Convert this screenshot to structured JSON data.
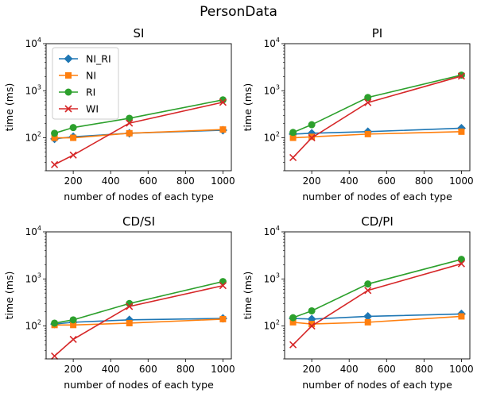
{
  "suptitle": "PersonData",
  "colors": {
    "NI_RI": "#1f77b4",
    "NI": "#ff7f0e",
    "RI": "#2ca02c",
    "WI": "#d62728"
  },
  "markers": {
    "NI_RI": "diamond",
    "NI": "square",
    "RI": "circle",
    "WI": "x"
  },
  "chart_data": [
    {
      "type": "line",
      "title": "SI",
      "xlabel": "number of nodes of each type",
      "ylabel": "time (ms)",
      "y_scale": "log",
      "xlim": [
        55,
        1045
      ],
      "ylim": [
        20,
        10000
      ],
      "x_ticks": [
        200,
        400,
        600,
        800,
        1000
      ],
      "y_ticks": [
        100,
        1000,
        10000
      ],
      "y_tick_labels": [
        {
          "base": "10",
          "exp": "2"
        },
        {
          "base": "10",
          "exp": "3"
        },
        {
          "base": "10",
          "exp": "4"
        }
      ],
      "x": [
        100,
        200,
        500,
        1000
      ],
      "legend": {
        "placement": "top-left",
        "entries": [
          "NI_RI",
          "NI",
          "RI",
          "WI"
        ]
      },
      "series": [
        {
          "name": "NI_RI",
          "values": [
            95,
            105,
            125,
            145
          ]
        },
        {
          "name": "NI",
          "values": [
            100,
            100,
            125,
            150
          ]
        },
        {
          "name": "RI",
          "values": [
            125,
            165,
            260,
            640
          ]
        },
        {
          "name": "WI",
          "values": [
            27,
            43,
            205,
            570
          ]
        }
      ]
    },
    {
      "type": "line",
      "title": "PI",
      "xlabel": "number of nodes of each type",
      "ylabel": "time (ms)",
      "y_scale": "log",
      "xlim": [
        55,
        1045
      ],
      "ylim": [
        20,
        10000
      ],
      "x_ticks": [
        200,
        400,
        600,
        800,
        1000
      ],
      "y_ticks": [
        100,
        1000,
        10000
      ],
      "y_tick_labels": [
        {
          "base": "10",
          "exp": "2"
        },
        {
          "base": "10",
          "exp": "3"
        },
        {
          "base": "10",
          "exp": "4"
        }
      ],
      "x": [
        100,
        200,
        500,
        1000
      ],
      "series": [
        {
          "name": "NI_RI",
          "values": [
            120,
            125,
            135,
            160
          ]
        },
        {
          "name": "NI",
          "values": [
            100,
            105,
            120,
            135
          ]
        },
        {
          "name": "RI",
          "values": [
            130,
            190,
            720,
            2150
          ]
        },
        {
          "name": "WI",
          "values": [
            38,
            100,
            560,
            2050
          ]
        }
      ]
    },
    {
      "type": "line",
      "title": "CD/SI",
      "xlabel": "number of nodes of each type",
      "ylabel": "time (ms)",
      "y_scale": "log",
      "xlim": [
        55,
        1045
      ],
      "ylim": [
        20,
        10000
      ],
      "x_ticks": [
        200,
        400,
        600,
        800,
        1000
      ],
      "y_ticks": [
        100,
        1000,
        10000
      ],
      "y_tick_labels": [
        {
          "base": "10",
          "exp": "2"
        },
        {
          "base": "10",
          "exp": "3"
        },
        {
          "base": "10",
          "exp": "4"
        }
      ],
      "x": [
        100,
        200,
        500,
        1000
      ],
      "series": [
        {
          "name": "NI_RI",
          "values": [
            110,
            120,
            135,
            145
          ]
        },
        {
          "name": "NI",
          "values": [
            105,
            105,
            115,
            140
          ]
        },
        {
          "name": "RI",
          "values": [
            115,
            135,
            300,
            880
          ]
        },
        {
          "name": "WI",
          "values": [
            23,
            52,
            260,
            720
          ]
        }
      ]
    },
    {
      "type": "line",
      "title": "CD/PI",
      "xlabel": "number of nodes of each type",
      "ylabel": "time (ms)",
      "y_scale": "log",
      "xlim": [
        55,
        1045
      ],
      "ylim": [
        20,
        10000
      ],
      "x_ticks": [
        200,
        400,
        600,
        800,
        1000
      ],
      "y_ticks": [
        100,
        1000,
        10000
      ],
      "y_tick_labels": [
        {
          "base": "10",
          "exp": "2"
        },
        {
          "base": "10",
          "exp": "3"
        },
        {
          "base": "10",
          "exp": "4"
        }
      ],
      "x": [
        100,
        200,
        500,
        1000
      ],
      "series": [
        {
          "name": "NI_RI",
          "values": [
            145,
            140,
            160,
            180
          ]
        },
        {
          "name": "NI",
          "values": [
            120,
            110,
            120,
            160
          ]
        },
        {
          "name": "RI",
          "values": [
            150,
            210,
            780,
            2600
          ]
        },
        {
          "name": "WI",
          "values": [
            40,
            100,
            570,
            2100
          ]
        }
      ]
    }
  ]
}
